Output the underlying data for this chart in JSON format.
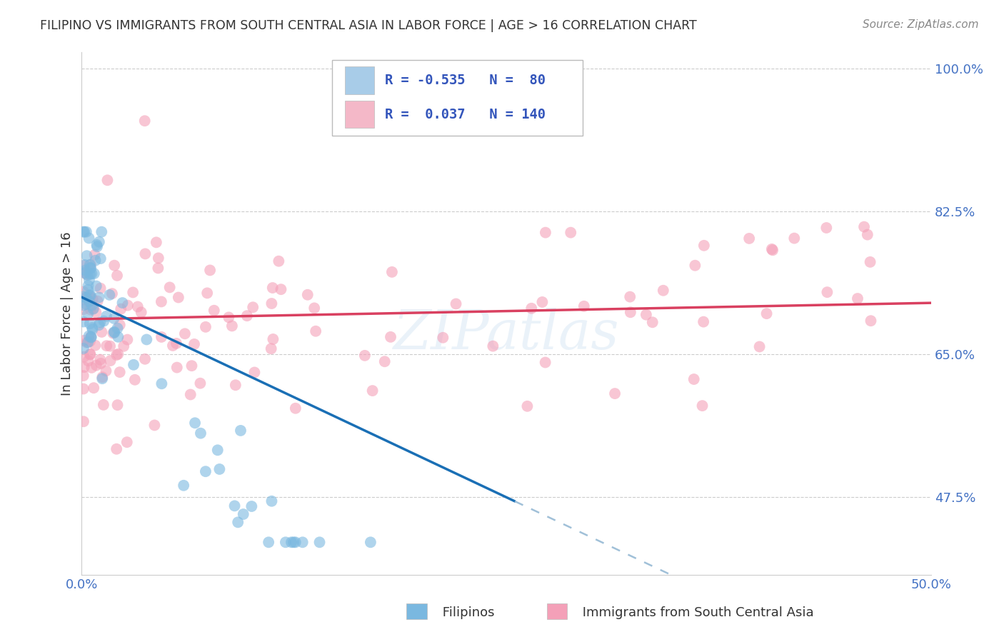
{
  "title": "FILIPINO VS IMMIGRANTS FROM SOUTH CENTRAL ASIA IN LABOR FORCE | AGE > 16 CORRELATION CHART",
  "source": "Source: ZipAtlas.com",
  "ylabel": "In Labor Force | Age > 16",
  "x_min": 0.0,
  "x_max": 0.5,
  "y_min": 0.38,
  "y_max": 1.02,
  "filipinos_color": "#7ab8e0",
  "immigrants_color": "#f4a0b8",
  "trend_blue_color": "#1a6fb5",
  "trend_pink_color": "#d94060",
  "trend_dash_color": "#a0c0d8",
  "watermark": "ZIPatlas",
  "legend_blue_color": "#a8cce8",
  "legend_pink_color": "#f4b8c8",
  "legend_border_color": "#bbbbbb",
  "grid_color": "#cccccc",
  "tick_color": "#4472c4",
  "title_color": "#333333",
  "source_color": "#888888",
  "ylabel_color": "#333333",
  "bottom_legend_blue": "#7ab8e0",
  "bottom_legend_pink": "#f4a0b8"
}
